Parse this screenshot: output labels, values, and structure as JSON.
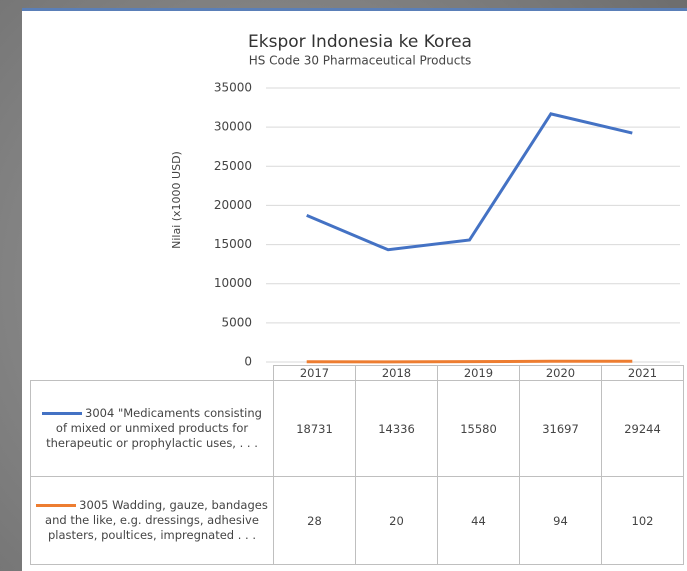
{
  "chart_data": {
    "type": "line",
    "title": "Ekspor Indonesia ke Korea",
    "subtitle": "HS Code 30 Pharmaceutical Products",
    "y_label": "Nilai (x1000 USD)",
    "categories": [
      "2017",
      "2018",
      "2019",
      "2020",
      "2021"
    ],
    "series": [
      {
        "name": "3004 \"Medicaments consisting of mixed or unmixed products for therapeutic or prophylactic uses, . . .",
        "color": "#4472c4",
        "values": [
          18731,
          14336,
          15580,
          31697,
          29244
        ]
      },
      {
        "name": "3005 Wadding, gauze, bandages and the like, e.g. dressings, adhesive plasters, poultices, impregnated . . .",
        "color": "#ed7d31",
        "values": [
          28,
          20,
          44,
          94,
          102
        ]
      }
    ],
    "ylim": [
      0,
      35000
    ],
    "yticks": [
      0,
      5000,
      10000,
      15000,
      20000,
      25000,
      30000,
      35000
    ],
    "grid": true
  }
}
